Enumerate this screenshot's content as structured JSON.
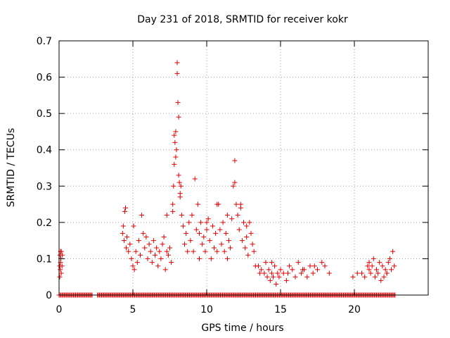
{
  "chart_data": {
    "type": "scatter",
    "title": "Day 231 of 2018, SRMTID for receiver kokr",
    "xlabel": "GPS time / hours",
    "ylabel": "SRMTID / TECUs",
    "xlim": [
      0,
      25
    ],
    "ylim": [
      0,
      0.7
    ],
    "xticks": [
      0,
      5,
      10,
      15,
      20
    ],
    "xtick_labels": [
      "0",
      "5",
      "10",
      "15",
      "20"
    ],
    "yticks": [
      0,
      0.1,
      0.2,
      0.3,
      0.4,
      0.5,
      0.6,
      0.7
    ],
    "ytick_labels": [
      "0",
      "0.1",
      "0.2",
      "0.3",
      "0.4",
      "0.5",
      "0.6",
      "0.7"
    ],
    "grid": true,
    "marker": "plus",
    "color": "#e00000",
    "series": [
      {
        "name": "SRMTID",
        "x": [
          0.05,
          0.05,
          0.07,
          0.08,
          0.1,
          0.1,
          0.12,
          0.15,
          0.15,
          0.2,
          0.22,
          4.3,
          4.35,
          4.4,
          4.45,
          4.5,
          4.55,
          4.6,
          4.7,
          4.8,
          4.9,
          5.0,
          5.05,
          5.1,
          5.2,
          5.3,
          5.4,
          5.5,
          5.6,
          5.7,
          5.8,
          5.9,
          6.0,
          6.1,
          6.2,
          6.3,
          6.4,
          6.5,
          6.6,
          6.7,
          6.8,
          6.9,
          7.0,
          7.1,
          7.2,
          7.3,
          7.4,
          7.5,
          7.6,
          7.7,
          7.75,
          7.8,
          7.8,
          7.85,
          7.9,
          7.9,
          7.95,
          8.0,
          8.0,
          8.05,
          8.1,
          8.1,
          8.15,
          8.2,
          8.25,
          8.3,
          8.4,
          8.5,
          8.6,
          8.7,
          8.8,
          8.9,
          9.0,
          9.1,
          9.2,
          9.3,
          9.4,
          9.5,
          9.6,
          9.7,
          9.8,
          9.9,
          10.0,
          10.1,
          10.2,
          10.3,
          10.4,
          10.5,
          10.6,
          10.7,
          10.8,
          10.9,
          11.0,
          11.1,
          11.2,
          11.3,
          11.4,
          11.5,
          11.6,
          11.7,
          11.8,
          11.9,
          12.0,
          12.1,
          12.2,
          12.3,
          12.4,
          12.5,
          12.6,
          12.7,
          12.8,
          12.9,
          13.0,
          13.1,
          13.2,
          13.3,
          13.5,
          13.7,
          13.9,
          14.0,
          14.1,
          14.2,
          14.3,
          14.4,
          14.5,
          14.6,
          14.7,
          14.8,
          14.9,
          15.0,
          15.2,
          15.4,
          15.6,
          15.8,
          16.0,
          16.2,
          16.4,
          16.6,
          16.8,
          17.0,
          17.2,
          17.5,
          17.8,
          18.0,
          18.3,
          19.9,
          20.2,
          20.5,
          20.7,
          20.9,
          21.0,
          21.1,
          21.2,
          21.3,
          21.4,
          21.5,
          21.6,
          21.7,
          21.8,
          21.9,
          22.0,
          22.1,
          22.2,
          22.3,
          22.4,
          22.5,
          22.6,
          22.7,
          7.3,
          7.7,
          8.2,
          9.5,
          10.0,
          10.7,
          11.4,
          11.9,
          12.3,
          12.7,
          13.6,
          14.4,
          15.5,
          16.5,
          17.3,
          21.0,
          22.2
        ],
        "y": [
          0.05,
          0.08,
          0.11,
          0.07,
          0.12,
          0.09,
          0.1,
          0.12,
          0.06,
          0.08,
          0.11,
          0.17,
          0.19,
          0.15,
          0.23,
          0.24,
          0.13,
          0.16,
          0.12,
          0.14,
          0.1,
          0.08,
          0.19,
          0.07,
          0.12,
          0.09,
          0.15,
          0.11,
          0.22,
          0.17,
          0.13,
          0.16,
          0.1,
          0.14,
          0.12,
          0.09,
          0.15,
          0.11,
          0.13,
          0.08,
          0.12,
          0.1,
          0.14,
          0.16,
          0.07,
          0.12,
          0.11,
          0.13,
          0.09,
          0.25,
          0.3,
          0.36,
          0.44,
          0.42,
          0.38,
          0.45,
          0.4,
          0.61,
          0.64,
          0.53,
          0.49,
          0.33,
          0.31,
          0.28,
          0.3,
          0.22,
          0.19,
          0.14,
          0.17,
          0.12,
          0.2,
          0.15,
          0.22,
          0.12,
          0.32,
          0.18,
          0.25,
          0.1,
          0.2,
          0.14,
          0.16,
          0.12,
          0.18,
          0.21,
          0.15,
          0.1,
          0.19,
          0.13,
          0.17,
          0.12,
          0.25,
          0.18,
          0.14,
          0.2,
          0.12,
          0.17,
          0.1,
          0.15,
          0.13,
          0.21,
          0.3,
          0.37,
          0.25,
          0.22,
          0.18,
          0.24,
          0.15,
          0.2,
          0.13,
          0.16,
          0.11,
          0.2,
          0.17,
          0.14,
          0.12,
          0.08,
          0.08,
          0.07,
          0.06,
          0.09,
          0.05,
          0.07,
          0.04,
          0.06,
          0.05,
          0.08,
          0.03,
          0.06,
          0.05,
          0.07,
          0.06,
          0.04,
          0.08,
          0.07,
          0.05,
          0.09,
          0.06,
          0.07,
          0.05,
          0.08,
          0.06,
          0.07,
          0.09,
          0.08,
          0.06,
          0.05,
          0.06,
          0.06,
          0.05,
          0.08,
          0.07,
          0.06,
          0.08,
          0.1,
          0.05,
          0.07,
          0.06,
          0.09,
          0.04,
          0.08,
          0.05,
          0.07,
          0.06,
          0.09,
          0.1,
          0.07,
          0.12,
          0.08,
          0.22,
          0.23,
          0.27,
          0.17,
          0.2,
          0.25,
          0.22,
          0.31,
          0.25,
          0.19,
          0.06,
          0.09,
          0.06,
          0.07,
          0.08,
          0.09,
          0.06
        ]
      }
    ],
    "zero_ranges": [
      [
        0.0,
        2.3
      ],
      [
        2.6,
        4.0
      ],
      [
        4.0,
        22.8
      ]
    ]
  }
}
